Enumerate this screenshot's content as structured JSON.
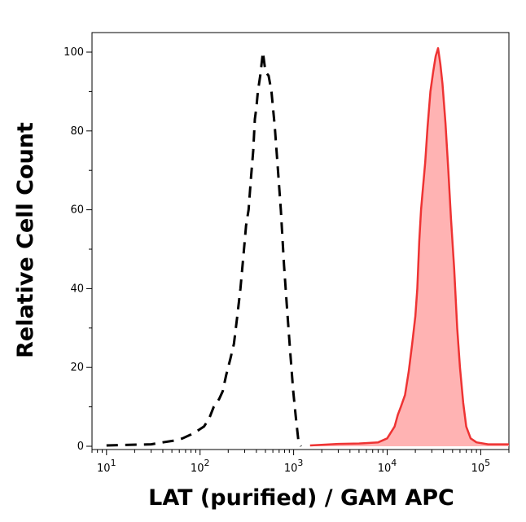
{
  "chart_data": {
    "type": "area",
    "title": "",
    "xlabel": "LAT (purified) / GAM APC",
    "ylabel": "Relative Cell Count",
    "x_scale": "log",
    "xlim": [
      7,
      200000
    ],
    "ylim": [
      0,
      105
    ],
    "grid": false,
    "legend": "none",
    "x_ticks": [
      {
        "value": 10,
        "base": "10",
        "exp": "1"
      },
      {
        "value": 100,
        "base": "10",
        "exp": "2"
      },
      {
        "value": 1000,
        "base": "10",
        "exp": "3"
      },
      {
        "value": 10000,
        "base": "10",
        "exp": "4"
      },
      {
        "value": 100000,
        "base": "10",
        "exp": "5"
      }
    ],
    "y_ticks": [
      0,
      20,
      40,
      60,
      80,
      100
    ],
    "series": [
      {
        "style": "dashed",
        "color": "#000000",
        "points": [
          [
            10,
            0.2
          ],
          [
            30,
            0.5
          ],
          [
            40,
            1
          ],
          [
            55,
            1.5
          ],
          [
            65,
            2
          ],
          [
            80,
            3
          ],
          [
            95,
            4
          ],
          [
            110,
            5
          ],
          [
            125,
            7
          ],
          [
            140,
            10
          ],
          [
            160,
            12
          ],
          [
            175,
            14
          ],
          [
            190,
            18
          ],
          [
            210,
            22
          ],
          [
            230,
            26
          ],
          [
            250,
            33
          ],
          [
            270,
            40
          ],
          [
            290,
            48
          ],
          [
            310,
            56
          ],
          [
            330,
            60
          ],
          [
            350,
            68
          ],
          [
            370,
            75
          ],
          [
            385,
            83
          ],
          [
            400,
            86
          ],
          [
            415,
            90
          ],
          [
            440,
            94
          ],
          [
            470,
            100
          ],
          [
            500,
            95
          ],
          [
            540,
            94
          ],
          [
            580,
            90
          ],
          [
            630,
            81
          ],
          [
            680,
            70
          ],
          [
            730,
            60
          ],
          [
            790,
            46
          ],
          [
            850,
            35
          ],
          [
            920,
            24
          ],
          [
            990,
            14
          ],
          [
            1060,
            7
          ],
          [
            1130,
            1
          ],
          [
            1200,
            0
          ]
        ]
      },
      {
        "style": "filled",
        "color": "#ee3333",
        "fill": "#ffb3b3",
        "points": [
          [
            1500,
            0.2
          ],
          [
            3000,
            0.6
          ],
          [
            5000,
            0.7
          ],
          [
            8000,
            1
          ],
          [
            10000,
            2
          ],
          [
            12000,
            5
          ],
          [
            13000,
            8
          ],
          [
            14000,
            10
          ],
          [
            15500,
            13
          ],
          [
            17000,
            19
          ],
          [
            18500,
            26
          ],
          [
            20000,
            33
          ],
          [
            21000,
            40
          ],
          [
            22000,
            52
          ],
          [
            23000,
            60
          ],
          [
            24000,
            65
          ],
          [
            25500,
            72
          ],
          [
            27000,
            81
          ],
          [
            29000,
            90
          ],
          [
            31000,
            95
          ],
          [
            33000,
            99
          ],
          [
            35000,
            101
          ],
          [
            37000,
            97
          ],
          [
            39000,
            92
          ],
          [
            42000,
            82
          ],
          [
            45000,
            70
          ],
          [
            48000,
            58
          ],
          [
            52000,
            45
          ],
          [
            56000,
            30
          ],
          [
            60000,
            20
          ],
          [
            65000,
            11
          ],
          [
            70000,
            5
          ],
          [
            78000,
            2
          ],
          [
            90000,
            1
          ],
          [
            120000,
            0.5
          ],
          [
            200000,
            0.5
          ]
        ]
      }
    ]
  }
}
